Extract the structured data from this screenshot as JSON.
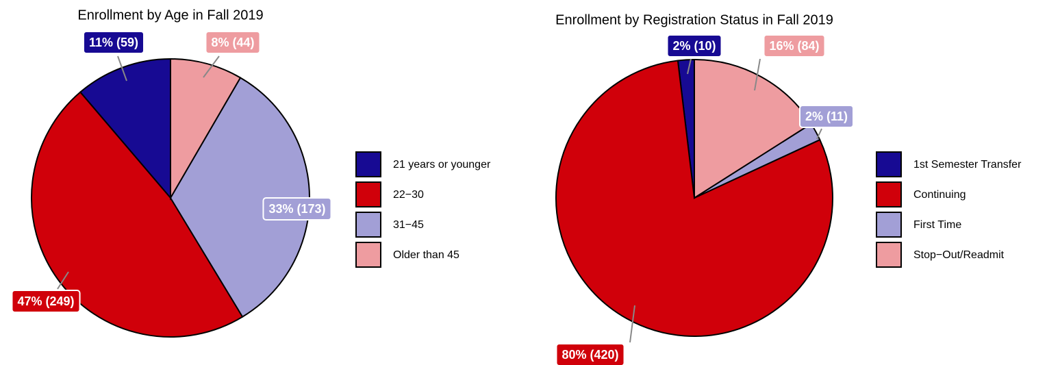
{
  "chart_data": [
    {
      "type": "pie",
      "title": "Enrollment by Age in Fall 2019",
      "categories": [
        "21  years  or younger",
        "22−30",
        "31−45",
        "Older than 45"
      ],
      "values": [
        59,
        249,
        173,
        44
      ],
      "value_labels": [
        "11% (59)",
        "47% (249)",
        "33% (173)",
        "8% (44)"
      ],
      "colors": [
        "#170a93",
        "#d0000a",
        "#a29fd6",
        "#ee9ca0"
      ]
    },
    {
      "type": "pie",
      "title": "Enrollment by Registration Status in Fall 2019",
      "categories": [
        "1st Semester Transfer",
        "Continuing",
        "First Time",
        "Stop−Out/Readmit"
      ],
      "values": [
        10,
        420,
        11,
        84
      ],
      "value_labels": [
        "2% (10)",
        "80% (420)",
        "2% (11)",
        "16% (84)"
      ],
      "colors": [
        "#170a93",
        "#d0000a",
        "#a29fd6",
        "#ee9ca0"
      ]
    }
  ]
}
